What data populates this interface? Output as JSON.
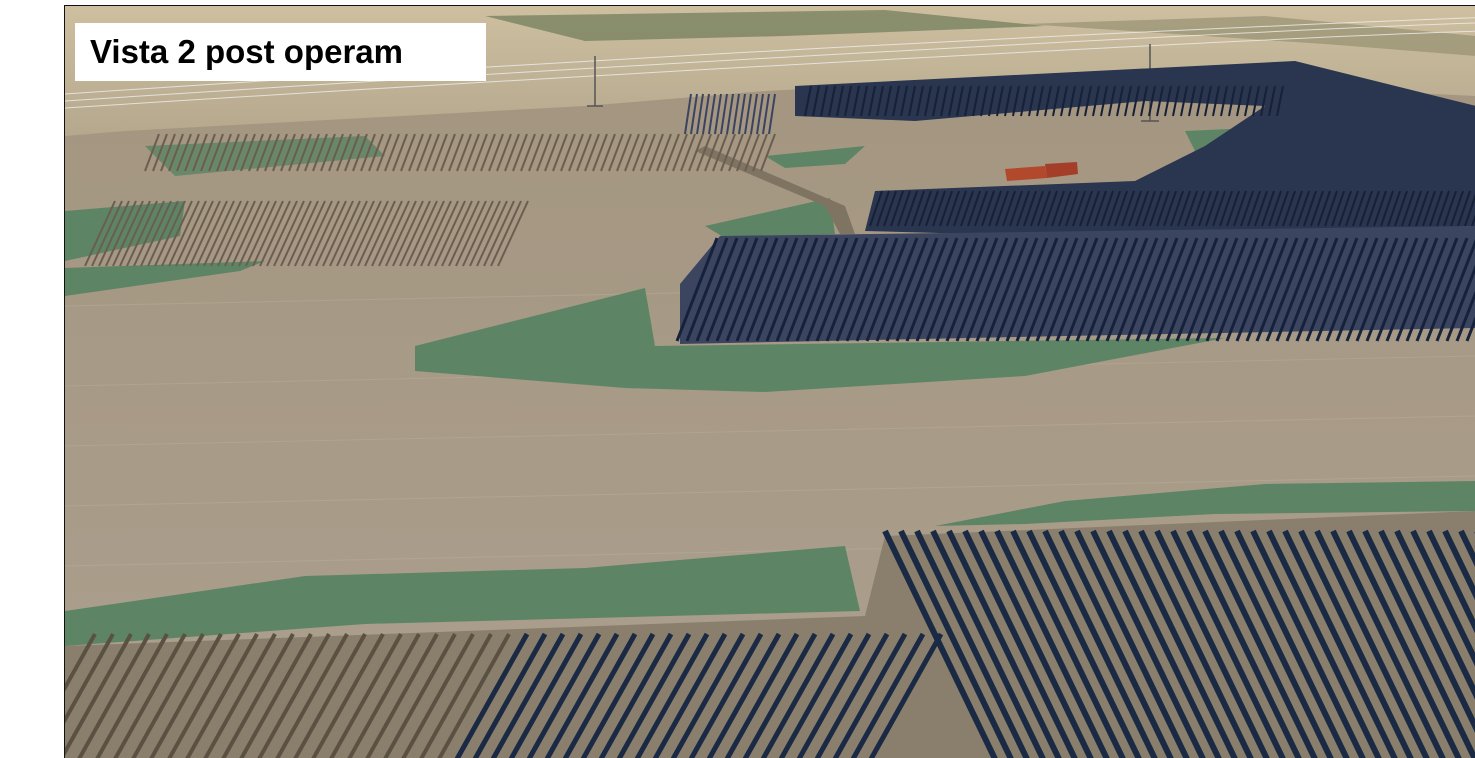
{
  "caption": "Vista 2 post operam",
  "colors": {
    "ground": "#a79a88",
    "ground_far": "#9e8f74",
    "green_area": "#5d8565",
    "panel_dark": "#1b2a44",
    "panel_light": "#b9a98c",
    "building_roof": "#b2482c",
    "frame_border": "#111111"
  },
  "icons": [
    "solar-panel-array",
    "green-buffer-area",
    "power-pylon",
    "farm-building"
  ]
}
